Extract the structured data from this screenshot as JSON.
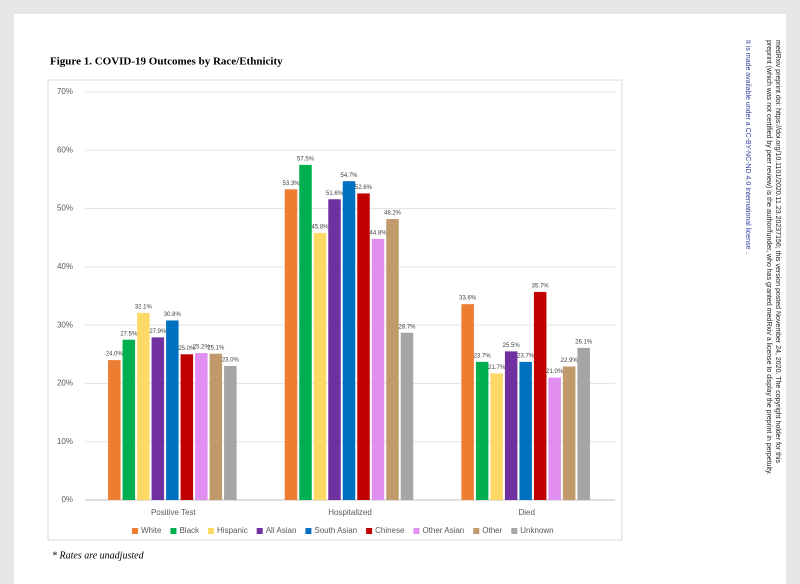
{
  "chart_data": {
    "type": "bar",
    "title": "Figure 1. COVID-19 Outcomes by Race/Ethnicity",
    "note": "* Rates are unadjusted",
    "categories": [
      "Positive Test",
      "Hospitalized",
      "Died"
    ],
    "series": [
      {
        "name": "White",
        "color": "#ed7d31",
        "values": [
          24.0,
          53.3,
          33.6
        ],
        "value_labels": [
          "24.0%",
          "53.3%",
          "33.6%"
        ]
      },
      {
        "name": "Black",
        "color": "#00b050",
        "values": [
          27.5,
          57.5,
          23.7
        ],
        "value_labels": [
          "27.5%",
          "57.5%",
          "23.7%"
        ]
      },
      {
        "name": "Hispanic",
        "color": "#ffd966",
        "values": [
          32.1,
          45.8,
          21.7
        ],
        "value_labels": [
          "32.1%",
          "45.8%",
          "21.7%"
        ]
      },
      {
        "name": "All Asian",
        "color": "#7030a0",
        "values": [
          27.9,
          51.6,
          25.5
        ],
        "value_labels": [
          "27.9%",
          "51.6%",
          "25.5%"
        ]
      },
      {
        "name": "South Asian",
        "color": "#0070c0",
        "values": [
          30.8,
          54.7,
          23.7
        ],
        "value_labels": [
          "30.8%",
          "54.7%",
          "23.7%"
        ]
      },
      {
        "name": "Chinese",
        "color": "#c00000",
        "values": [
          25.0,
          52.6,
          35.7
        ],
        "value_labels": [
          "25.0%",
          "52.6%",
          "35.7%"
        ]
      },
      {
        "name": "Other Asian",
        "color": "#e08ef0",
        "values": [
          25.2,
          44.8,
          21.0
        ],
        "value_labels": [
          "25.2%",
          "44.8%",
          "21.0%"
        ]
      },
      {
        "name": "Other",
        "color": "#c09a6b",
        "values": [
          25.1,
          48.2,
          22.9
        ],
        "value_labels": [
          "25.1%",
          "48.2%",
          "22.9%"
        ]
      },
      {
        "name": "Unknown",
        "color": "#a5a5a5",
        "values": [
          23.0,
          28.7,
          26.1
        ],
        "value_labels": [
          "23.0%",
          "28.7%",
          "26.1%"
        ]
      }
    ],
    "ylim": [
      0,
      70
    ],
    "yticks": [
      {
        "value": 0,
        "label": "0%"
      },
      {
        "value": 10,
        "label": "10%"
      },
      {
        "value": 20,
        "label": "20%"
      },
      {
        "value": 30,
        "label": "30%"
      },
      {
        "value": 40,
        "label": "40%"
      },
      {
        "value": 50,
        "label": "50%"
      },
      {
        "value": 60,
        "label": "60%"
      },
      {
        "value": 70,
        "label": "70%"
      }
    ],
    "grid": true,
    "legend": "bottom"
  },
  "margin_notes": [
    "medRxiv preprint doi: https://doi.org/10.1101/2020.11.23.20237156; this version posted November 24, 2020. The copyright holder for this",
    "preprint (which was not certified by peer review) is the author/funder, who has granted medRxiv a license to display the preprint in perpetuity.",
    "It is made available under a CC-BY-NC-ND 4.0 International license ."
  ]
}
